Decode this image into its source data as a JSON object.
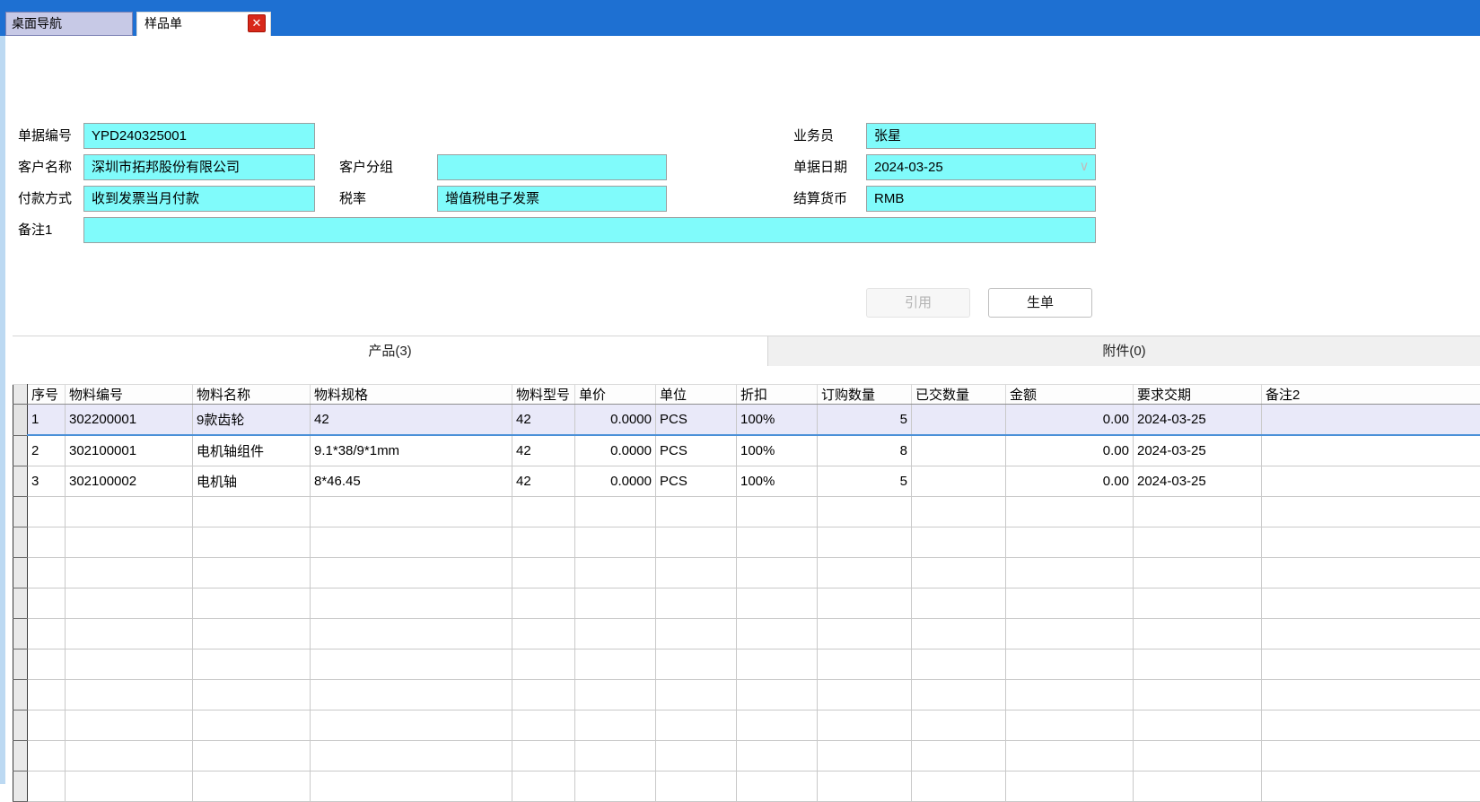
{
  "window": {
    "nav_tab": "桌面导航",
    "doc_tab": "样品单",
    "icons": {
      "close": "✕",
      "chevron_down": "∨"
    }
  },
  "form": {
    "doc_no": {
      "label": "单据编号",
      "value": "YPD240325001"
    },
    "customer_name": {
      "label": "客户名称",
      "value": "深圳市拓邦股份有限公司"
    },
    "payment_method": {
      "label": "付款方式",
      "value": "收到发票当月付款"
    },
    "remark1": {
      "label": "备注1",
      "value": ""
    },
    "customer_group": {
      "label": "客户分组",
      "value": ""
    },
    "tax_rate": {
      "label": "税率",
      "value": "增值税电子发票"
    },
    "salesman": {
      "label": "业务员",
      "value": "张星"
    },
    "doc_date": {
      "label": "单据日期",
      "value": "2024-03-25"
    },
    "currency": {
      "label": "结算货币",
      "value": "RMB"
    }
  },
  "actions": {
    "reference": "引用",
    "generate": "生单"
  },
  "detail_tabs": {
    "products": "产品(3)",
    "attachments": "附件(0)"
  },
  "table": {
    "columns": [
      "序号",
      "物料编号",
      "物料名称",
      "物料规格",
      "物料型号",
      "单价",
      "单位",
      "折扣",
      "订购数量",
      "已交数量",
      "金额",
      "要求交期",
      "备注2"
    ],
    "rows": [
      [
        "1",
        "302200001",
        "9款齿轮",
        "42",
        "42",
        "0.0000",
        "PCS",
        "100%",
        "5",
        "",
        "0.00",
        "2024-03-25",
        ""
      ],
      [
        "2",
        "302100001",
        "电机轴组件",
        "9.1*38/9*1mm",
        "42",
        "0.0000",
        "PCS",
        "100%",
        "8",
        "",
        "0.00",
        "2024-03-25",
        ""
      ],
      [
        "3",
        "302100002",
        "电机轴",
        "8*46.45",
        "42",
        "0.0000",
        "PCS",
        "100%",
        "5",
        "",
        "0.00",
        "2024-03-25",
        ""
      ]
    ]
  },
  "colors": {
    "topbar_blue": "#1E70D2",
    "field_cyan": "#80FBFB",
    "nav_tab_bg": "#C7C9E6",
    "close_red": "#D8281A",
    "selected_row_bg": "#E9E9F9",
    "selected_row_border": "#4A90D8",
    "attach_tab_bg": "#F0F0F0"
  }
}
